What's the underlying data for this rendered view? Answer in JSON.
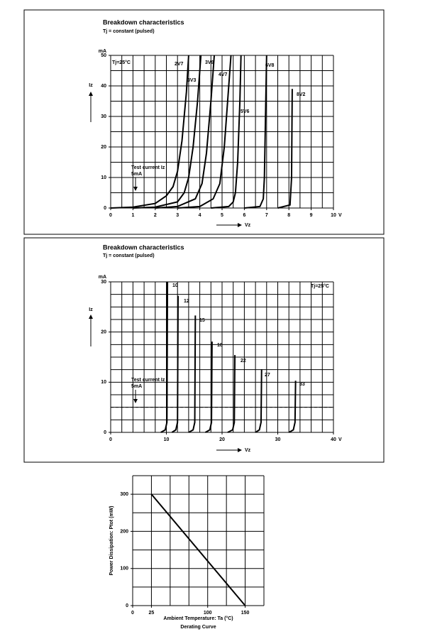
{
  "chart_data": [
    {
      "type": "line",
      "title": "Breakdown characteristics",
      "subtitle": "Tj = constant (pulsed)",
      "y_unit": "mA",
      "y_label": "Iz",
      "x_label": "Vz",
      "x_unit": "V",
      "note": "Tj=25°C",
      "test_current_label": [
        "Test current Iz",
        "5mA"
      ],
      "test_current": 5,
      "xlim": [
        0,
        10
      ],
      "xticks": [
        0,
        1,
        2,
        3,
        4,
        5,
        6,
        7,
        8,
        9,
        10
      ],
      "ylim": [
        0,
        50
      ],
      "yticks": [
        0,
        10,
        20,
        30,
        40,
        50
      ],
      "grid": true,
      "series": [
        {
          "name": "2V7",
          "color": "#000000",
          "x": [
            0,
            1,
            2,
            2.5,
            2.8,
            3.0,
            3.2,
            3.4,
            3.5
          ],
          "values": [
            0,
            0.3,
            1.5,
            4,
            7,
            12,
            22,
            38,
            50
          ]
        },
        {
          "name": "3V3",
          "color": "#000000",
          "x": [
            1,
            2,
            3,
            3.3,
            3.5,
            3.7,
            3.9,
            4.05
          ],
          "values": [
            0,
            0.3,
            2,
            5,
            10,
            20,
            35,
            50
          ]
        },
        {
          "name": "3V9",
          "color": "#000000",
          "x": [
            2,
            3,
            3.8,
            4.1,
            4.3,
            4.5,
            4.65
          ],
          "values": [
            0,
            0.5,
            3,
            8,
            18,
            35,
            50
          ]
        },
        {
          "name": "4V7",
          "color": "#000000",
          "x": [
            3,
            4,
            4.6,
            4.9,
            5.1,
            5.3,
            5.4
          ],
          "values": [
            0,
            0.5,
            3,
            8,
            20,
            40,
            50
          ]
        },
        {
          "name": "5V6",
          "color": "#000000",
          "x": [
            4.5,
            5.3,
            5.5,
            5.6,
            5.7,
            5.8,
            5.85
          ],
          "values": [
            0,
            0.5,
            2,
            5,
            15,
            35,
            50
          ]
        },
        {
          "name": "6V8",
          "color": "#000000",
          "x": [
            6,
            6.7,
            6.85,
            6.9,
            6.95,
            7.0
          ],
          "values": [
            0,
            0.5,
            3,
            10,
            30,
            50
          ]
        },
        {
          "name": "8V2",
          "color": "#000000",
          "x": [
            7.5,
            8.05,
            8.12,
            8.15
          ],
          "values": [
            0,
            1,
            10,
            39
          ]
        }
      ]
    },
    {
      "type": "line",
      "title": "Breakdown characteristics",
      "subtitle": "Tj = constant (pulsed)",
      "y_unit": "mA",
      "y_label": "Iz",
      "x_label": "Vz",
      "x_unit": "V",
      "note": "Tj=25°C",
      "test_current_label": [
        "Test current Iz",
        "5mA"
      ],
      "test_current": 5,
      "xlim": [
        0,
        40
      ],
      "xticks": [
        0,
        10,
        20,
        30,
        40
      ],
      "ylim": [
        0,
        30
      ],
      "yticks": [
        0,
        10,
        20,
        30
      ],
      "grid": true,
      "series": [
        {
          "name": "10",
          "color": "#000000",
          "x": [
            9,
            9.8,
            10.1,
            10.2
          ],
          "values": [
            0,
            0.5,
            2,
            30
          ]
        },
        {
          "name": "12",
          "color": "#000000",
          "x": [
            11,
            11.7,
            12.0,
            12.1
          ],
          "values": [
            0,
            0.5,
            2,
            27.2
          ]
        },
        {
          "name": "15",
          "color": "#000000",
          "x": [
            14,
            14.8,
            15.1,
            15.2
          ],
          "values": [
            0,
            0.5,
            2,
            23.3
          ]
        },
        {
          "name": "18",
          "color": "#000000",
          "x": [
            17,
            17.8,
            18.1,
            18.2
          ],
          "values": [
            0,
            0.5,
            2,
            18.1
          ]
        },
        {
          "name": "22",
          "color": "#000000",
          "x": [
            21,
            21.9,
            22.2,
            22.3
          ],
          "values": [
            0,
            0.5,
            2,
            15.4
          ]
        },
        {
          "name": "27",
          "color": "#000000",
          "x": [
            26,
            26.7,
            27.0,
            27.1
          ],
          "values": [
            0,
            0.5,
            2,
            12.6
          ]
        },
        {
          "name": "33",
          "color": "#000000",
          "x": [
            32,
            32.8,
            33.1,
            33.2
          ],
          "values": [
            0,
            0.5,
            2,
            10.3
          ]
        }
      ]
    },
    {
      "type": "line",
      "y_label": "Power Dissipation: Ptot (mW)",
      "x_label": "Ambient Temperature: Ta (°C)",
      "caption": "Derating Curve",
      "xlim": [
        0,
        175
      ],
      "xticks": [
        0,
        25,
        100,
        150
      ],
      "ylim": [
        0,
        350
      ],
      "yticks": [
        0,
        100,
        200,
        300
      ],
      "grid": true,
      "series": [
        {
          "color": "#000000",
          "x": [
            25,
            150
          ],
          "values": [
            300,
            0
          ]
        }
      ]
    }
  ]
}
